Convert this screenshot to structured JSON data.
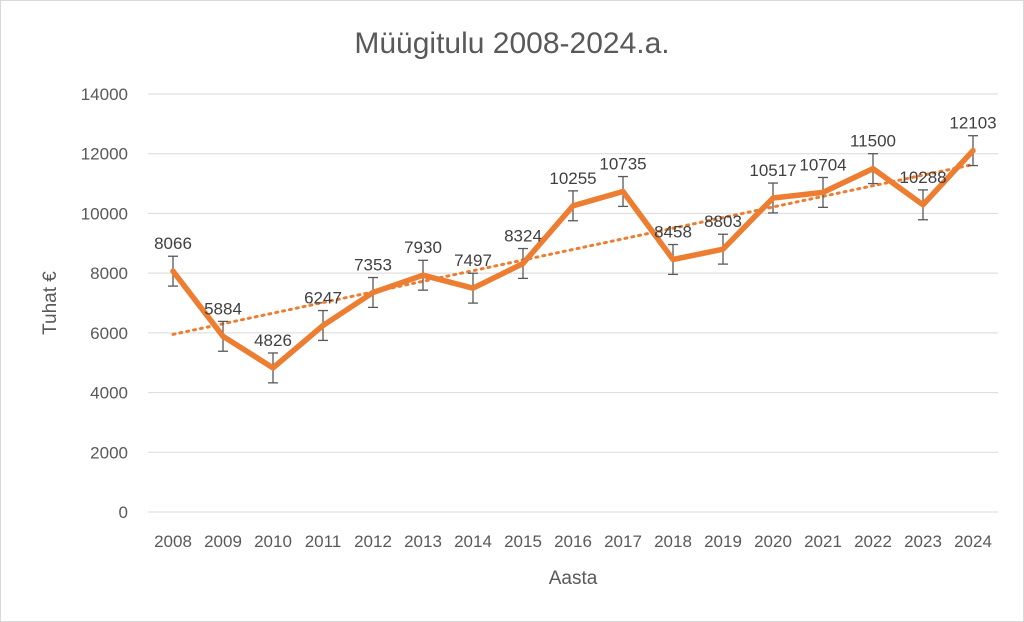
{
  "chart_data": {
    "type": "line",
    "title": "Müügitulu 2008-2024.a.",
    "xlabel": "Aasta",
    "ylabel": "Tuhat €",
    "categories": [
      "2008",
      "2009",
      "2010",
      "2011",
      "2012",
      "2013",
      "2014",
      "2015",
      "2016",
      "2017",
      "2018",
      "2019",
      "2020",
      "2021",
      "2022",
      "2023",
      "2024"
    ],
    "series": [
      {
        "values": [
          8066,
          5884,
          4826,
          6247,
          7353,
          7930,
          7497,
          8324,
          10255,
          10735,
          8458,
          8803,
          10517,
          10704,
          11500,
          10288,
          12103
        ]
      }
    ],
    "ylim": [
      0,
      14000
    ],
    "yticks": [
      "0",
      "2000",
      "4000",
      "6000",
      "8000",
      "10000",
      "12000",
      "14000"
    ],
    "error_bars": "±500",
    "trendline": "linear",
    "grid": "horizontal",
    "colors": {
      "series": "#ed7d31",
      "trendline": "#ed7d31",
      "grid": "#d9d9d9",
      "error_bar": "#595959"
    }
  }
}
